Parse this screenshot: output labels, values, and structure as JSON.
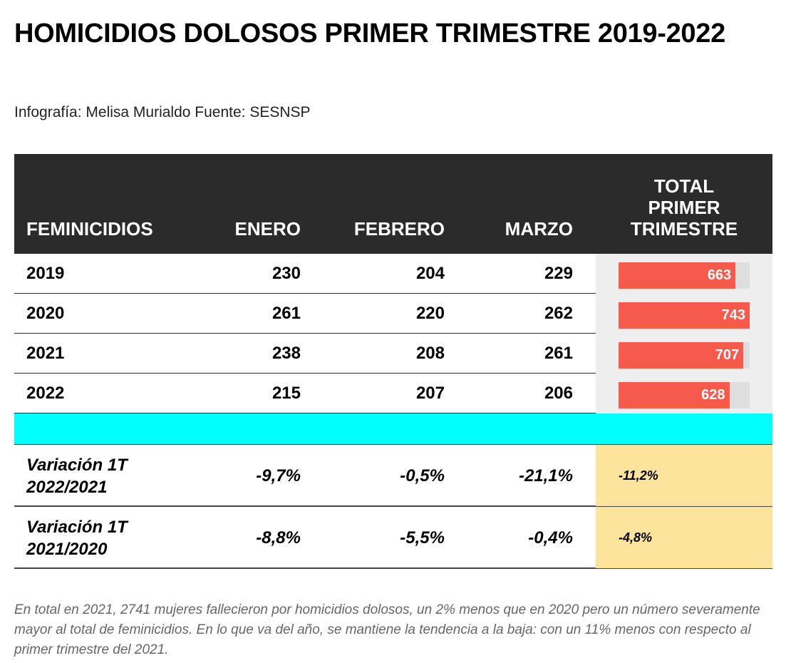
{
  "title": "HOMICIDIOS DOLOSOS PRIMER TRIMESTRE 2019-2022",
  "subtitle": "Infografía: Melisa Murialdo Fuente: SESNSP",
  "header": {
    "label": "FEMINICIDIOS",
    "ene": "ENERO",
    "feb": "FEBRERO",
    "mar": "MARZO",
    "total": [
      "TOTAL",
      "PRIMER",
      "TRIMESTRE"
    ]
  },
  "chart_data": {
    "type": "table",
    "columns": [
      "FEMINICIDIOS",
      "ENERO",
      "FEBRERO",
      "MARZO",
      "TOTAL PRIMER TRIMESTRE"
    ],
    "bar_max": 743,
    "rows": [
      {
        "year": "2019",
        "ene": "230",
        "feb": "204",
        "mar": "229",
        "total": 663
      },
      {
        "year": "2020",
        "ene": "261",
        "feb": "220",
        "mar": "262",
        "total": 743
      },
      {
        "year": "2021",
        "ene": "238",
        "feb": "208",
        "mar": "261",
        "total": 707
      },
      {
        "year": "2022",
        "ene": "215",
        "feb": "207",
        "mar": "206",
        "total": 628
      }
    ],
    "variations": [
      {
        "label_line1": "Variación 1T",
        "label_line2": "2022/2021",
        "ene": "-9,7%",
        "feb": "-0,5%",
        "mar": "-21,1%",
        "total": "-11,2%"
      },
      {
        "label_line1": "Variación 1T",
        "label_line2": "2021/2020",
        "ene": "-8,8%",
        "feb": "-5,5%",
        "mar": "-0,4%",
        "total": "-4,8%"
      }
    ],
    "colors": {
      "bar": "#f65a4c",
      "variation_total_bg": "#fde49d",
      "spacer": "#00ffff",
      "header_bg": "#2b2b2b"
    }
  },
  "footnote": "En total en 2021, 2741 mujeres fallecieron por homicidios dolosos, un 2% menos que en 2020 pero un número severamente mayor al total de feminicidios. En lo que va del año, se mantiene la tendencia a la baja: con un 11% menos con respecto al primer trimestre del 2021."
}
